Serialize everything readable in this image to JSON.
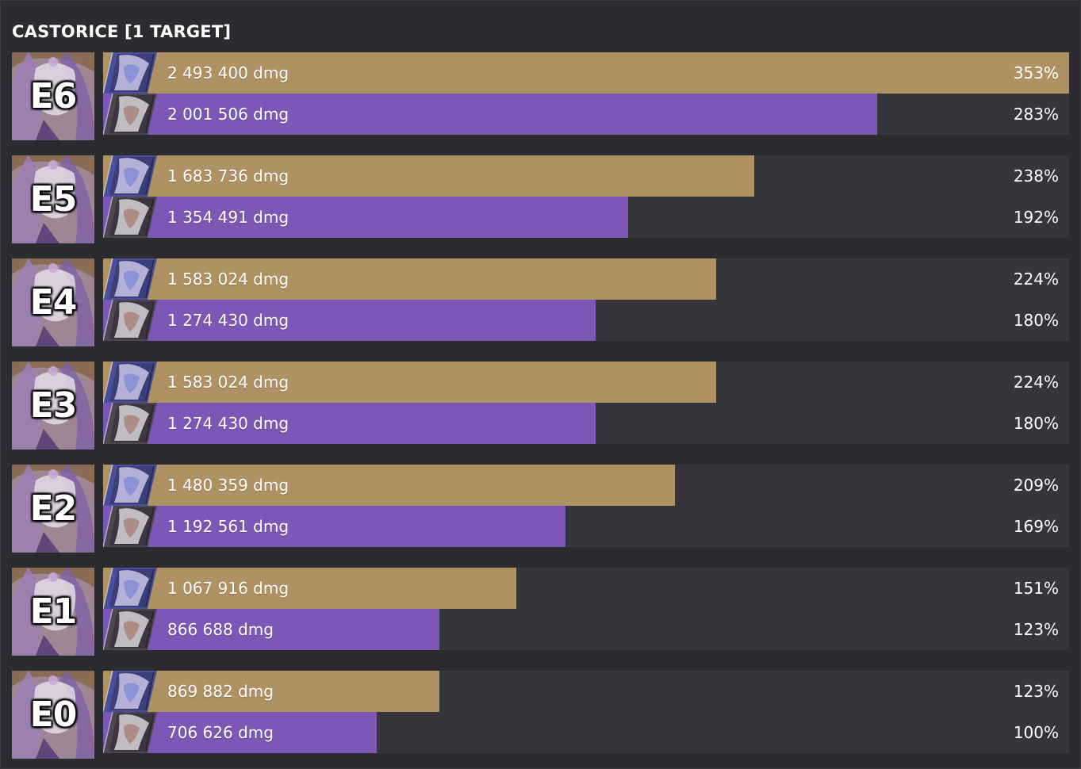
{
  "chart_data": {
    "type": "bar",
    "title": "CASTORICE [1 TARGET]",
    "xlim": [
      0,
      353
    ],
    "unit": "dmg",
    "categories": [
      "E6",
      "E5",
      "E4",
      "E3",
      "E2",
      "E1",
      "E0"
    ],
    "series": [
      {
        "color": "#b09163",
        "icon": "lightcone-card-icon",
        "values_dmg": [
          "2 493 400 dmg",
          "1 683 736 dmg",
          "1 583 024 dmg",
          "1 583 024 dmg",
          "1 480 359 dmg",
          "1 067 916 dmg",
          "869 882 dmg"
        ],
        "values_pct": [
          353,
          238,
          224,
          224,
          209,
          151,
          123
        ],
        "labels_pct": [
          "353%",
          "238%",
          "224%",
          "224%",
          "209%",
          "151%",
          "123%"
        ]
      },
      {
        "color": "#7b58b5",
        "icon": "lightcone-card-icon",
        "values_dmg": [
          "2 001 506 dmg",
          "1 354 491 dmg",
          "1 274 430 dmg",
          "1 274 430 dmg",
          "1 192 561 dmg",
          "866 688 dmg",
          "706 626 dmg"
        ],
        "values_pct": [
          283,
          192,
          180,
          180,
          169,
          123,
          100
        ],
        "labels_pct": [
          "283%",
          "192%",
          "180%",
          "180%",
          "169%",
          "123%",
          "100%"
        ]
      }
    ],
    "grid": false,
    "legend": "none"
  },
  "colors": {
    "background": "#2b2c30",
    "track": "#35363a",
    "gold": "#b09163",
    "purple": "#7b58b5"
  },
  "portrait_icon": "castorice-portrait-icon"
}
